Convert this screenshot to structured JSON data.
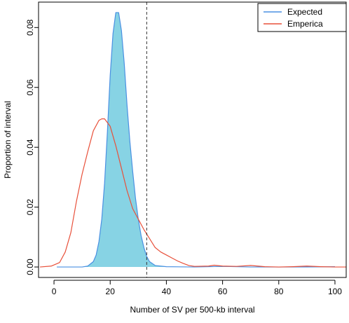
{
  "chart_data": {
    "type": "area",
    "title": "",
    "xlabel": "Number of SV per 500-kb interval",
    "ylabel": "Proportion of interval",
    "xlim": [
      -5.5,
      104
    ],
    "ylim": [
      -0.0035,
      0.0885
    ],
    "x_ticks": [
      0,
      20,
      40,
      60,
      80,
      100
    ],
    "y_ticks": [
      0.0,
      0.02,
      0.04,
      0.06,
      0.08
    ],
    "y_tick_labels": [
      "0.00",
      "0.02",
      "0.04",
      "0.06",
      "0.08"
    ],
    "grid": false,
    "legend_position": "top-right",
    "threshold_x": 33,
    "series": [
      {
        "name": "Expected",
        "color": "#4a90e2",
        "fill": "#87d3e4",
        "x": [
          1,
          10,
          12,
          14,
          15,
          16,
          17,
          18,
          19,
          20,
          21,
          22,
          23,
          24,
          25,
          26,
          27,
          28,
          29,
          30,
          31,
          32,
          33,
          34,
          36,
          40,
          50,
          60,
          70,
          80,
          90,
          100
        ],
        "y": [
          0,
          0,
          0.0003,
          0.0018,
          0.004,
          0.0085,
          0.016,
          0.028,
          0.045,
          0.064,
          0.078,
          0.085,
          0.085,
          0.079,
          0.068,
          0.054,
          0.042,
          0.032,
          0.023,
          0.016,
          0.0105,
          0.0065,
          0.0035,
          0.0018,
          0.0005,
          0.0001,
          0,
          0.0002,
          0,
          0,
          0,
          0.0001
        ]
      },
      {
        "name": "Emperica",
        "color": "#e8503a",
        "x": [
          -5,
          -1,
          2,
          4,
          6,
          8,
          10,
          12,
          14,
          16,
          17,
          18,
          20,
          22,
          24,
          26,
          28,
          30,
          32,
          34,
          36,
          38,
          40,
          42,
          44,
          46,
          48,
          50,
          55,
          57,
          60,
          65,
          70,
          75,
          80,
          85,
          90,
          95,
          100,
          104
        ],
        "y": [
          0,
          0.0003,
          0.0015,
          0.005,
          0.0115,
          0.022,
          0.031,
          0.0385,
          0.0455,
          0.049,
          0.0495,
          0.0495,
          0.047,
          0.0405,
          0.033,
          0.0255,
          0.0195,
          0.016,
          0.0125,
          0.0095,
          0.0065,
          0.005,
          0.004,
          0.003,
          0.002,
          0.0012,
          0.0005,
          0.0002,
          0.0003,
          0.0006,
          0.0003,
          0.0002,
          0.0005,
          0.0001,
          0,
          0.0001,
          0.0003,
          0.0001,
          0,
          0
        ]
      }
    ]
  }
}
